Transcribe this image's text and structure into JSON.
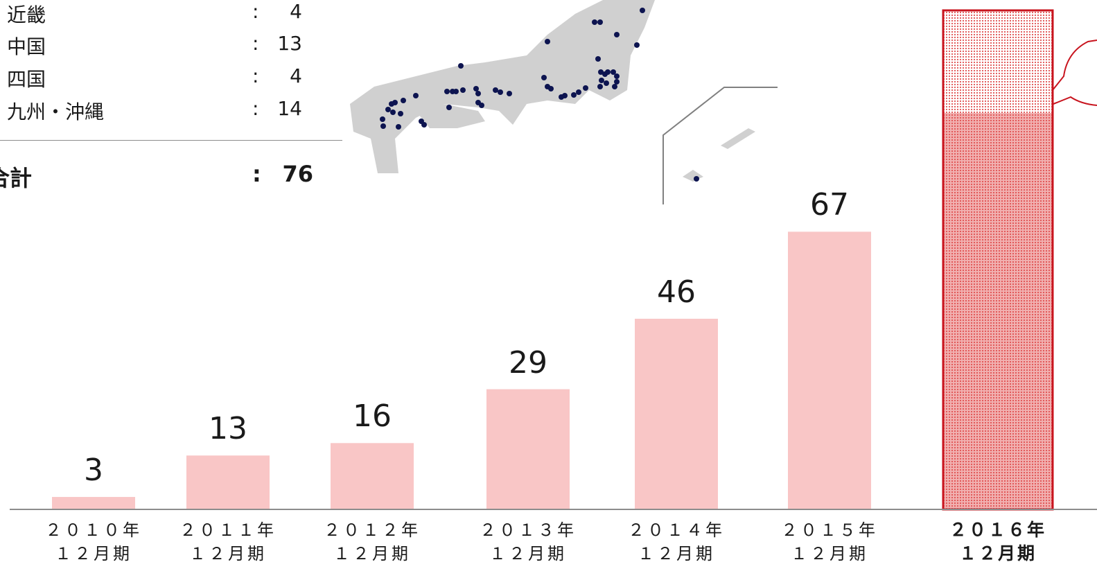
{
  "regions": [
    {
      "name": "近畿",
      "value": "4"
    },
    {
      "name": "中国",
      "value": "13"
    },
    {
      "name": "四国",
      "value": "4"
    },
    {
      "name": "九州・沖縄",
      "value": "14"
    }
  ],
  "colon": ":",
  "total": {
    "label": "合計",
    "value": "76"
  },
  "chart_data": {
    "type": "bar",
    "categories": [
      "２０１０年 １２月期",
      "２０１１年 １２月期",
      "２０１２年 １２月期",
      "２０１３年 １２月期",
      "２０１４年 １２月期",
      "２０１５年 １２月期",
      "２０１６年 １２月期"
    ],
    "category_lines": [
      [
        "２０１０年",
        "１２月期"
      ],
      [
        "２０１１年",
        "１２月期"
      ],
      [
        "２０１２年",
        "１２月期"
      ],
      [
        "２０１３年",
        "１２月期"
      ],
      [
        "２０１４年",
        "１２月期"
      ],
      [
        "２０１５年",
        "１２月期"
      ],
      [
        "２０１６年",
        "１２月期"
      ]
    ],
    "values": [
      3,
      13,
      16,
      29,
      46,
      67,
      null
    ],
    "value_labels": [
      "3",
      "13",
      "16",
      "29",
      "46",
      "67",
      ""
    ],
    "highlight_index": 6,
    "colors": {
      "bar": "#f9c6c6",
      "highlight_outline": "#c8141e",
      "highlight_dots": "#e05050",
      "map_land": "#d0d0d0",
      "map_dots": "#0d1450"
    }
  }
}
